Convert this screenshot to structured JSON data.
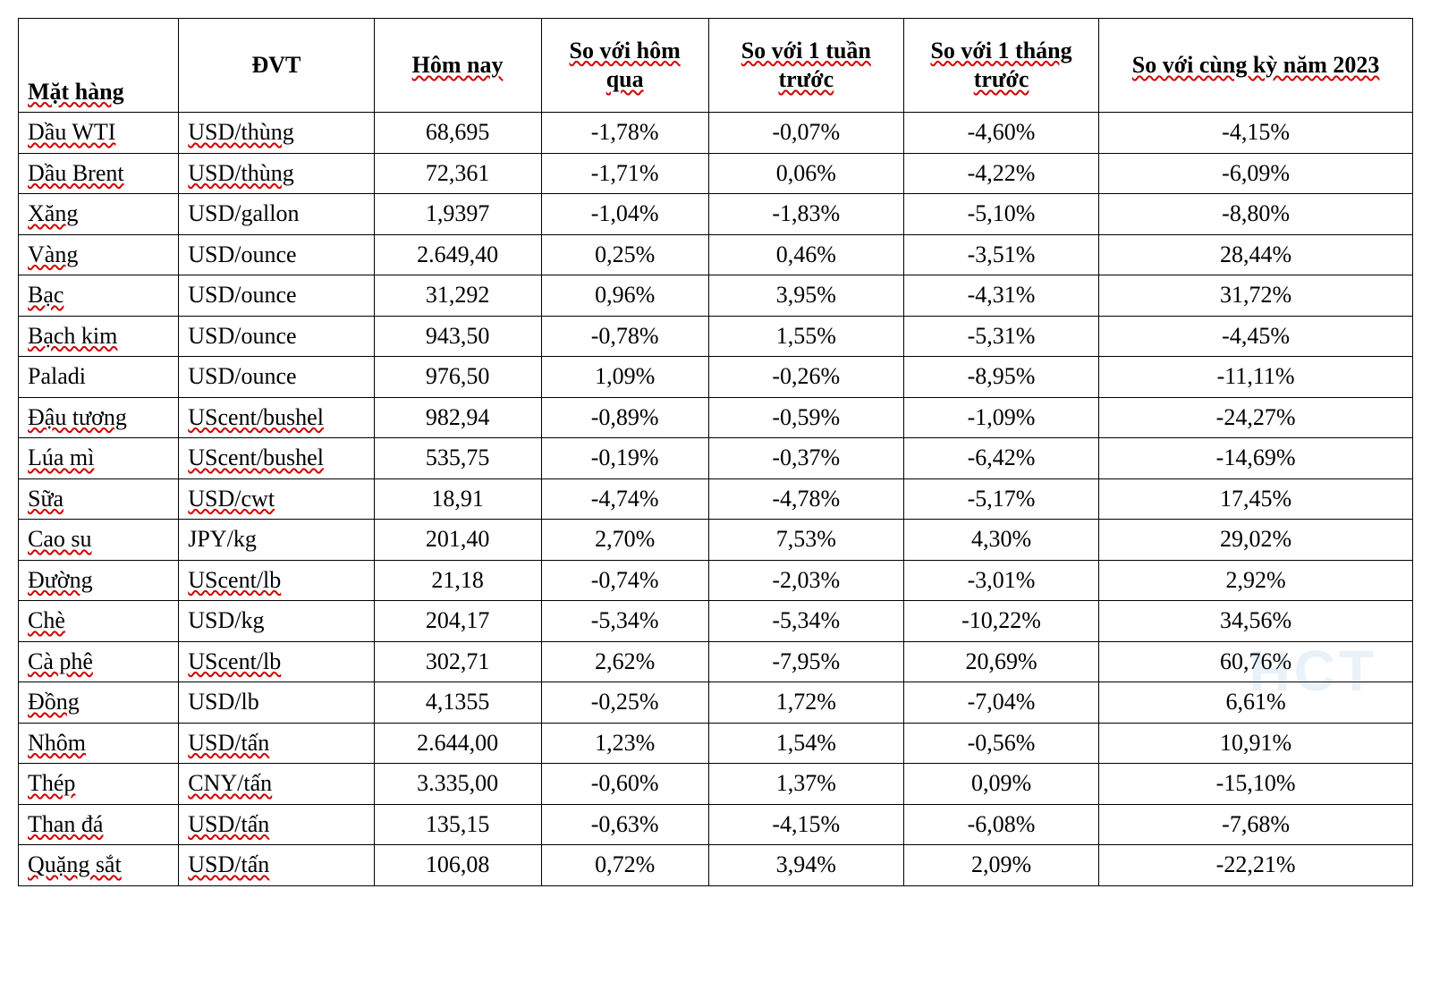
{
  "table": {
    "type": "table",
    "background_color": "#ffffff",
    "border_color": "#000000",
    "font_family": "Times New Roman",
    "header_font_weight": "bold",
    "cell_fontsize_pt": 20,
    "wavy_underline_color": "#d00000",
    "columns": [
      {
        "key": "name",
        "label": "Mặt hàng",
        "align_header": "left",
        "align_body": "left",
        "width_pct": 11.5,
        "spellcheck_header": true
      },
      {
        "key": "unit",
        "label": "ĐVT",
        "align_header": "center",
        "align_body": "left",
        "width_pct": 14,
        "spellcheck_header": false
      },
      {
        "key": "today",
        "label": "Hôm nay",
        "align_header": "center",
        "align_body": "center",
        "width_pct": 12,
        "spellcheck_header": true
      },
      {
        "key": "vs_day",
        "label": "So với hôm qua",
        "align_header": "center",
        "align_body": "center",
        "width_pct": 12,
        "spellcheck_header": true
      },
      {
        "key": "vs_wk",
        "label": "So với 1 tuần trước",
        "align_header": "center",
        "align_body": "center",
        "width_pct": 14,
        "spellcheck_header": true
      },
      {
        "key": "vs_mo",
        "label": "So với 1 tháng trước",
        "align_header": "center",
        "align_body": "center",
        "width_pct": 14,
        "spellcheck_header": true
      },
      {
        "key": "vs_yr",
        "label": "So với cùng kỳ năm 2023",
        "align_header": "center",
        "align_body": "center",
        "width_pct": 22.5,
        "spellcheck_header": true
      }
    ],
    "rows": [
      {
        "name": "Dầu WTI",
        "name_sp": true,
        "unit": "USD/thùng",
        "unit_sp": true,
        "today": "68,695",
        "vs_day": "-1,78%",
        "vs_wk": "-0,07%",
        "vs_mo": "-4,60%",
        "vs_yr": "-4,15%"
      },
      {
        "name": "Dầu Brent",
        "name_sp": true,
        "unit": "USD/thùng",
        "unit_sp": true,
        "today": "72,361",
        "vs_day": "-1,71%",
        "vs_wk": "0,06%",
        "vs_mo": "-4,22%",
        "vs_yr": "-6,09%"
      },
      {
        "name": "Xăng",
        "name_sp": true,
        "unit": "USD/gallon",
        "unit_sp": false,
        "today": "1,9397",
        "vs_day": "-1,04%",
        "vs_wk": "-1,83%",
        "vs_mo": "-5,10%",
        "vs_yr": "-8,80%"
      },
      {
        "name": "Vàng",
        "name_sp": true,
        "unit": "USD/ounce",
        "unit_sp": false,
        "today": "2.649,40",
        "vs_day": "0,25%",
        "vs_wk": "0,46%",
        "vs_mo": "-3,51%",
        "vs_yr": "28,44%"
      },
      {
        "name": "Bạc",
        "name_sp": true,
        "unit": "USD/ounce",
        "unit_sp": false,
        "today": "31,292",
        "vs_day": "0,96%",
        "vs_wk": "3,95%",
        "vs_mo": "-4,31%",
        "vs_yr": "31,72%"
      },
      {
        "name": "Bạch kim",
        "name_sp": true,
        "unit": "USD/ounce",
        "unit_sp": false,
        "today": "943,50",
        "vs_day": "-0,78%",
        "vs_wk": "1,55%",
        "vs_mo": "-5,31%",
        "vs_yr": "-4,45%"
      },
      {
        "name": "Paladi",
        "name_sp": false,
        "unit": "USD/ounce",
        "unit_sp": false,
        "today": "976,50",
        "vs_day": "1,09%",
        "vs_wk": "-0,26%",
        "vs_mo": "-8,95%",
        "vs_yr": "-11,11%"
      },
      {
        "name": "Đậu tương",
        "name_sp": true,
        "unit": "UScent/bushel",
        "unit_sp": true,
        "today": "982,94",
        "vs_day": "-0,89%",
        "vs_wk": "-0,59%",
        "vs_mo": "-1,09%",
        "vs_yr": "-24,27%"
      },
      {
        "name": "Lúa mì",
        "name_sp": true,
        "unit": "UScent/bushel",
        "unit_sp": true,
        "today": "535,75",
        "vs_day": "-0,19%",
        "vs_wk": "-0,37%",
        "vs_mo": "-6,42%",
        "vs_yr": "-14,69%"
      },
      {
        "name": "Sữa",
        "name_sp": true,
        "unit": "USD/cwt",
        "unit_sp": true,
        "today": "18,91",
        "vs_day": "-4,74%",
        "vs_wk": "-4,78%",
        "vs_mo": "-5,17%",
        "vs_yr": "17,45%"
      },
      {
        "name": "Cao su",
        "name_sp": true,
        "unit": "JPY/kg",
        "unit_sp": false,
        "today": "201,40",
        "vs_day": "2,70%",
        "vs_wk": "7,53%",
        "vs_mo": "4,30%",
        "vs_yr": "29,02%"
      },
      {
        "name": "Đường",
        "name_sp": true,
        "unit": "UScent/lb",
        "unit_sp": true,
        "today": "21,18",
        "vs_day": "-0,74%",
        "vs_wk": "-2,03%",
        "vs_mo": "-3,01%",
        "vs_yr": "2,92%"
      },
      {
        "name": "Chè",
        "name_sp": true,
        "unit": "USD/kg",
        "unit_sp": false,
        "today": "204,17",
        "vs_day": "-5,34%",
        "vs_wk": "-5,34%",
        "vs_mo": "-10,22%",
        "vs_yr": "34,56%"
      },
      {
        "name": "Cà phê",
        "name_sp": true,
        "unit": "UScent/lb",
        "unit_sp": true,
        "today": "302,71",
        "vs_day": "2,62%",
        "vs_wk": "-7,95%",
        "vs_mo": "20,69%",
        "vs_yr": "60,76%"
      },
      {
        "name": "Đồng",
        "name_sp": true,
        "unit": "USD/lb",
        "unit_sp": false,
        "today": "4,1355",
        "vs_day": "-0,25%",
        "vs_wk": "1,72%",
        "vs_mo": "-7,04%",
        "vs_yr": "6,61%"
      },
      {
        "name": "Nhôm",
        "name_sp": true,
        "unit": "USD/tấn",
        "unit_sp": true,
        "today": "2.644,00",
        "vs_day": "1,23%",
        "vs_wk": "1,54%",
        "vs_mo": "-0,56%",
        "vs_yr": "10,91%"
      },
      {
        "name": "Thép",
        "name_sp": true,
        "unit": "CNY/tấn",
        "unit_sp": true,
        "today": "3.335,00",
        "vs_day": "-0,60%",
        "vs_wk": "1,37%",
        "vs_mo": "0,09%",
        "vs_yr": "-15,10%"
      },
      {
        "name": "Than đá",
        "name_sp": true,
        "unit": "USD/tấn",
        "unit_sp": true,
        "today": "135,15",
        "vs_day": "-0,63%",
        "vs_wk": "-4,15%",
        "vs_mo": "-6,08%",
        "vs_yr": "-7,68%"
      },
      {
        "name": "Quặng sắt",
        "name_sp": true,
        "unit": "USD/tấn",
        "unit_sp": true,
        "today": "106,08",
        "vs_day": "0,72%",
        "vs_wk": "3,94%",
        "vs_mo": "2,09%",
        "vs_yr": "-22,21%"
      }
    ]
  },
  "watermark": {
    "text": "HCT",
    "color": "rgba(40,120,200,0.10)"
  }
}
